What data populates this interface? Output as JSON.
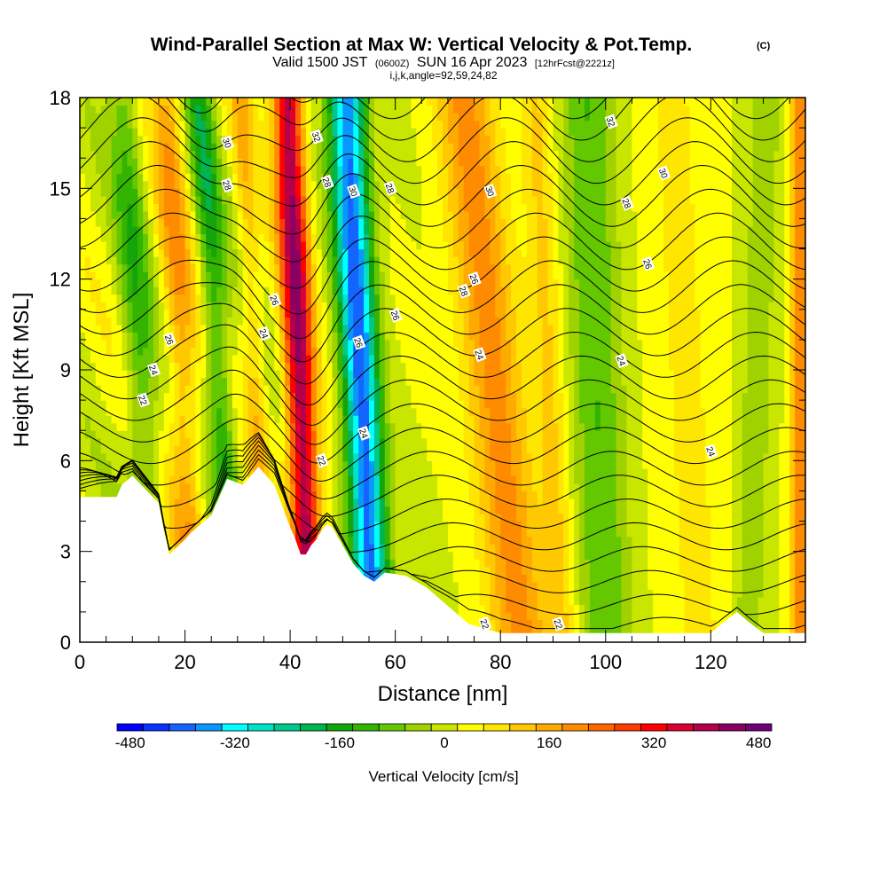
{
  "chart_data": {
    "type": "heatmap",
    "title": "Wind-Parallel Section at Max W: Vertical Velocity & Pot.Temp.",
    "title_mark": "(C)",
    "subtitle_parts": [
      "Valid 1500 JST",
      "(0600Z)",
      "SUN 16 Apr 2023",
      "[12hrFcst@2221z]"
    ],
    "subtitle2": "i,j,k,angle=92,59,24,82",
    "xlabel": "Distance [nm]",
    "ylabel": "Height [Kft MSL]",
    "xlim": [
      0,
      138
    ],
    "ylim": [
      0,
      18
    ],
    "x_ticks": [
      0,
      20,
      40,
      60,
      80,
      100,
      120
    ],
    "y_ticks": [
      0,
      3,
      6,
      9,
      12,
      15,
      18
    ],
    "colorbar": {
      "title": "Vertical Velocity [cm/s]",
      "ticks": [
        -480,
        -320,
        -160,
        0,
        160,
        320,
        480
      ],
      "range": [
        -500,
        500
      ],
      "levels": [
        {
          "min": -500,
          "max": -460,
          "color": "#0000ff"
        },
        {
          "min": -460,
          "max": -420,
          "color": "#0a32ff"
        },
        {
          "min": -420,
          "max": -380,
          "color": "#1464ff"
        },
        {
          "min": -380,
          "max": -340,
          "color": "#0a96ff"
        },
        {
          "min": -340,
          "max": -300,
          "color": "#00ffff"
        },
        {
          "min": -300,
          "max": -260,
          "color": "#00e1c8"
        },
        {
          "min": -260,
          "max": -220,
          "color": "#00c88c"
        },
        {
          "min": -220,
          "max": -180,
          "color": "#00b450"
        },
        {
          "min": -180,
          "max": -140,
          "color": "#14a50a"
        },
        {
          "min": -140,
          "max": -100,
          "color": "#32b400"
        },
        {
          "min": -100,
          "max": -60,
          "color": "#64c800"
        },
        {
          "min": -60,
          "max": -20,
          "color": "#a0d200"
        },
        {
          "min": -20,
          "max": 20,
          "color": "#c8e600"
        },
        {
          "min": 20,
          "max": 60,
          "color": "#ffff00"
        },
        {
          "min": 60,
          "max": 100,
          "color": "#ffe600"
        },
        {
          "min": 100,
          "max": 140,
          "color": "#ffc800"
        },
        {
          "min": 140,
          "max": 180,
          "color": "#ffaa00"
        },
        {
          "min": 180,
          "max": 220,
          "color": "#ff8c00"
        },
        {
          "min": 220,
          "max": 260,
          "color": "#ff6400"
        },
        {
          "min": 260,
          "max": 300,
          "color": "#ff3c00"
        },
        {
          "min": 300,
          "max": 340,
          "color": "#ff0000"
        },
        {
          "min": 340,
          "max": 380,
          "color": "#dc0032"
        },
        {
          "min": 380,
          "max": 420,
          "color": "#b4004b"
        },
        {
          "min": 420,
          "max": 460,
          "color": "#8c0064"
        },
        {
          "min": 460,
          "max": 500,
          "color": "#6e0078"
        }
      ]
    },
    "terrain_kft": {
      "x": [
        0,
        7,
        8,
        10,
        15,
        16,
        17,
        20,
        21,
        25,
        28,
        31,
        34,
        37,
        40,
        41,
        42,
        43,
        44,
        45,
        46,
        47,
        48,
        50,
        52,
        54,
        56,
        58,
        62,
        66,
        70,
        74,
        80,
        90,
        100,
        110,
        120,
        122,
        125,
        127,
        130,
        138
      ],
      "y": [
        4.8,
        4.8,
        5.2,
        5.5,
        4.6,
        3.7,
        2.9,
        3.4,
        3.6,
        4.2,
        5.4,
        5.2,
        5.8,
        5.2,
        3.8,
        3.4,
        2.9,
        2.9,
        3.2,
        3.4,
        3.7,
        3.9,
        3.8,
        3.2,
        2.6,
        2.2,
        2.0,
        2.3,
        2.2,
        1.8,
        1.2,
        0.6,
        0.3,
        0.3,
        0.3,
        0.3,
        0.3,
        0.6,
        1.0,
        0.7,
        0.3,
        0.3
      ]
    },
    "velocity_features": [
      {
        "type": "column",
        "x_base": 44,
        "slope": -0.25,
        "width": 2.8,
        "amp": 400
      },
      {
        "type": "column",
        "x_base": 56,
        "slope": -0.3,
        "width": 3.5,
        "amp": -420
      },
      {
        "type": "column",
        "x_base": 84,
        "slope": -0.6,
        "width": 5.5,
        "amp": 180
      },
      {
        "type": "column",
        "x_base": 30,
        "slope": -0.4,
        "width": 2.5,
        "amp": -160
      },
      {
        "type": "column",
        "x_base": 22,
        "slope": -0.3,
        "width": 3.0,
        "amp": 140
      },
      {
        "type": "column",
        "x_base": 14,
        "slope": -0.3,
        "width": 3.0,
        "amp": -120
      },
      {
        "type": "column",
        "x_base": 36,
        "slope": -0.3,
        "width": 2.0,
        "amp": 100
      },
      {
        "type": "column",
        "x_base": 100,
        "slope": -0.2,
        "width": 5.0,
        "amp": -120
      },
      {
        "type": "column",
        "x_base": 92,
        "slope": -0.3,
        "width": 3.0,
        "amp": 90
      },
      {
        "type": "column",
        "x_base": 118,
        "slope": -0.3,
        "width": 6.0,
        "amp": 50
      },
      {
        "type": "column",
        "x_base": 137,
        "slope": 0.0,
        "width": 1.8,
        "amp": 180
      },
      {
        "type": "column",
        "x_base": 127,
        "slope": 0.2,
        "width": 3.0,
        "amp": -70
      }
    ],
    "theta_contours": [
      {
        "level": 22,
        "labels": [
          [
            12,
            8.0
          ],
          [
            46,
            6.0
          ],
          [
            77,
            0.6
          ],
          [
            91,
            0.6
          ]
        ]
      },
      {
        "level": 24,
        "labels": [
          [
            14,
            9.0
          ],
          [
            35,
            10.2
          ],
          [
            54,
            6.9
          ],
          [
            76,
            9.5
          ],
          [
            103,
            9.3
          ],
          [
            120,
            6.3
          ]
        ]
      },
      {
        "level": 26,
        "labels": [
          [
            17,
            10.0
          ],
          [
            37,
            11.3
          ],
          [
            53,
            9.9
          ],
          [
            60,
            10.8
          ],
          [
            75,
            12.0
          ],
          [
            108,
            12.5
          ]
        ]
      },
      {
        "level": 28,
        "labels": [
          [
            28,
            15.1
          ],
          [
            47,
            15.2
          ],
          [
            59,
            15.0
          ],
          [
            73,
            11.6
          ],
          [
            104,
            14.5
          ]
        ]
      },
      {
        "level": 30,
        "labels": [
          [
            28,
            16.5
          ],
          [
            52,
            14.9
          ],
          [
            78,
            14.9
          ],
          [
            111,
            15.5
          ]
        ]
      },
      {
        "level": 32,
        "labels": [
          [
            45,
            16.7
          ],
          [
            101,
            17.2
          ]
        ]
      }
    ]
  }
}
